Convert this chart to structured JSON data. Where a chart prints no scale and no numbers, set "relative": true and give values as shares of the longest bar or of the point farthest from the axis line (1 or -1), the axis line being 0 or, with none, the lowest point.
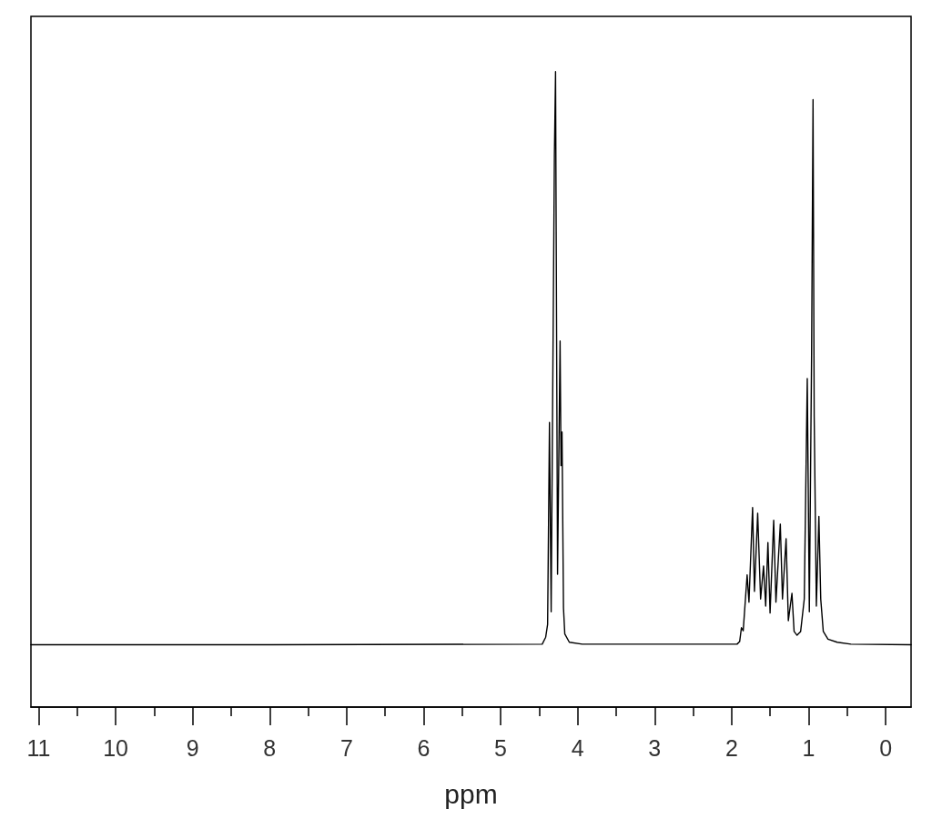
{
  "chart_data": {
    "type": "line",
    "relative": true,
    "xlabel": "ppm",
    "color": "#000000",
    "marker": "none",
    "line_style": "solid",
    "grid": false,
    "xlim": [
      11.1,
      -0.33
    ],
    "xticks": [
      11,
      {
        "value": 10.5,
        "label": null
      },
      10,
      {
        "value": 9.5,
        "label": null
      },
      9,
      {
        "value": 8.5,
        "label": null
      },
      8,
      {
        "value": 7.5,
        "label": null
      },
      7,
      {
        "value": 6.5,
        "label": null
      },
      6,
      {
        "value": 5.5,
        "label": null
      },
      5,
      {
        "value": 4.5,
        "label": null
      },
      4,
      {
        "value": 3.5,
        "label": null
      },
      3,
      {
        "value": 2.5,
        "label": null
      },
      2,
      {
        "value": 1.5,
        "label": null
      },
      1,
      {
        "value": 0.5,
        "label": null
      },
      0
    ],
    "x": [
      11.1,
      8,
      4.46,
      4.415,
      4.39,
      4.366,
      4.344,
      4.302,
      4.287,
      4.261,
      4.228,
      4.216,
      4.203,
      4.184,
      4.167,
      4.108,
      3.94,
      1.93,
      1.896,
      1.873,
      1.85,
      1.799,
      1.775,
      1.728,
      1.704,
      1.662,
      1.624,
      1.586,
      1.558,
      1.529,
      1.501,
      1.454,
      1.425,
      1.368,
      1.34,
      1.293,
      1.264,
      1.217,
      1.189,
      1.151,
      1.104,
      1.057,
      1.018,
      0.991,
      0.962,
      0.943,
      0.928,
      0.9,
      0.867,
      0.843,
      0.81,
      0.749,
      0.63,
      0.45,
      -0.33
    ],
    "values": [
      0.098,
      0.098,
      0.099,
      0.11,
      0.13,
      0.448,
      0.15,
      0.867,
      1,
      0.209,
      0.576,
      0.38,
      0.433,
      0.156,
      0.115,
      0.102,
      0.099,
      0.099,
      0.103,
      0.125,
      0.12,
      0.208,
      0.165,
      0.314,
      0.182,
      0.305,
      0.17,
      0.222,
      0.159,
      0.259,
      0.148,
      0.294,
      0.165,
      0.288,
      0.17,
      0.265,
      0.136,
      0.179,
      0.119,
      0.113,
      0.119,
      0.17,
      0.517,
      0.15,
      0.554,
      0.956,
      0.457,
      0.159,
      0.3,
      0.17,
      0.119,
      0.107,
      0.102,
      0.099,
      0.098
    ]
  }
}
